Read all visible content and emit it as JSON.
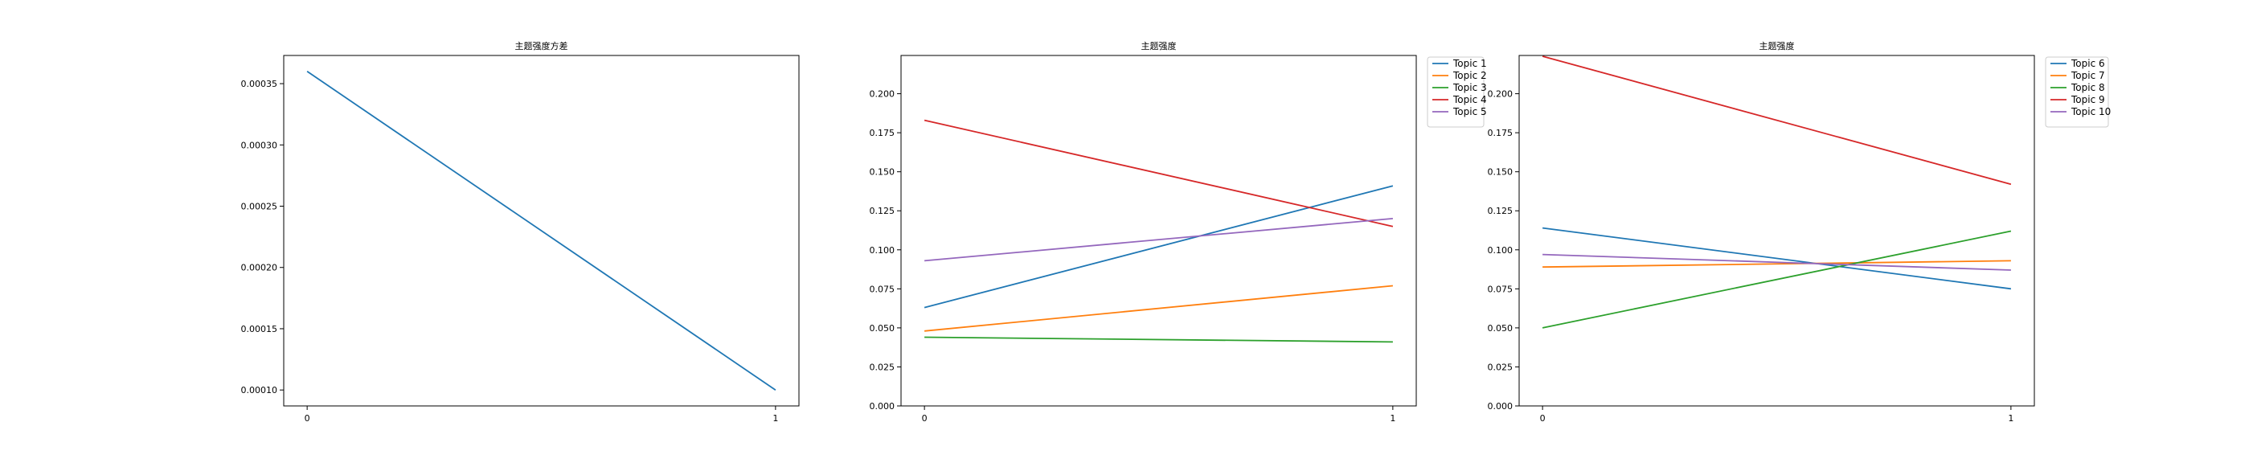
{
  "chart_data": [
    {
      "type": "line",
      "title": "主题强度方差",
      "xlabel": "",
      "ylabel": "",
      "x": [
        0,
        1
      ],
      "xticks": [
        "0",
        "1"
      ],
      "xlim": [
        -0.05,
        1.05
      ],
      "ylim": [
        8.7e-05,
        0.000373
      ],
      "yticks": [
        "0.00010",
        "0.00015",
        "0.00020",
        "0.00025",
        "0.00030",
        "0.00035"
      ],
      "ytick_values": [
        0.0001,
        0.00015,
        0.0002,
        0.00025,
        0.0003,
        0.00035
      ],
      "grid": false,
      "legend": "none",
      "series": [
        {
          "color": "#1f77b4",
          "values": [
            0.00036,
            0.0001
          ]
        }
      ]
    },
    {
      "type": "line",
      "title": "主题强度",
      "xlabel": "",
      "ylabel": "",
      "x": [
        0,
        1
      ],
      "xticks": [
        "0",
        "1"
      ],
      "xlim": [
        -0.05,
        1.05
      ],
      "ylim": [
        0.0,
        0.2245
      ],
      "yticks": [
        "0.000",
        "0.025",
        "0.050",
        "0.075",
        "0.100",
        "0.125",
        "0.150",
        "0.175",
        "0.200"
      ],
      "ytick_values": [
        0.0,
        0.025,
        0.05,
        0.075,
        0.1,
        0.125,
        0.15,
        0.175,
        0.2
      ],
      "grid": false,
      "legend": "outside-right",
      "series": [
        {
          "name": "Topic 1",
          "color": "#1f77b4",
          "values": [
            0.063,
            0.141
          ]
        },
        {
          "name": "Topic 2",
          "color": "#ff7f0e",
          "values": [
            0.048,
            0.077
          ]
        },
        {
          "name": "Topic 3",
          "color": "#2ca02c",
          "values": [
            0.044,
            0.041
          ]
        },
        {
          "name": "Topic 4",
          "color": "#d62728",
          "values": [
            0.183,
            0.115
          ]
        },
        {
          "name": "Topic 5",
          "color": "#9467bd",
          "values": [
            0.093,
            0.12
          ]
        }
      ]
    },
    {
      "type": "line",
      "title": "主题强度",
      "xlabel": "",
      "ylabel": "",
      "x": [
        0,
        1
      ],
      "xticks": [
        "0",
        "1"
      ],
      "xlim": [
        -0.05,
        1.05
      ],
      "ylim": [
        0.0,
        0.2245
      ],
      "yticks": [
        "0.000",
        "0.025",
        "0.050",
        "0.075",
        "0.100",
        "0.125",
        "0.150",
        "0.175",
        "0.200"
      ],
      "ytick_values": [
        0.0,
        0.025,
        0.05,
        0.075,
        0.1,
        0.125,
        0.15,
        0.175,
        0.2
      ],
      "grid": false,
      "legend": "outside-right",
      "series": [
        {
          "name": "Topic 6",
          "color": "#1f77b4",
          "values": [
            0.114,
            0.075
          ]
        },
        {
          "name": "Topic 7",
          "color": "#ff7f0e",
          "values": [
            0.089,
            0.093
          ]
        },
        {
          "name": "Topic 8",
          "color": "#2ca02c",
          "values": [
            0.05,
            0.112
          ]
        },
        {
          "name": "Topic 9",
          "color": "#d62728",
          "values": [
            0.224,
            0.142
          ]
        },
        {
          "name": "Topic 10",
          "color": "#9467bd",
          "values": [
            0.097,
            0.087
          ]
        }
      ]
    }
  ]
}
